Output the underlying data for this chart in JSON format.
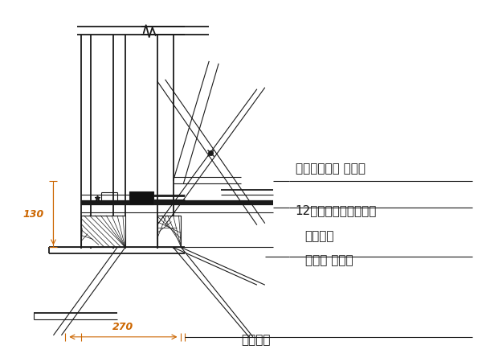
{
  "bg_color": "#ffffff",
  "lc": "#1a1a1a",
  "dim_color": "#cc6600",
  "labels": {
    "outer_rod": "外连杆（周转 使用）",
    "channel_steel": "12号槽钢（周转使用）",
    "connector_nut1": "连接螺母",
    "connector_nut2": "（周转 使用）",
    "anchor_bolt": "地脚螺栓",
    "dim_130": "130",
    "dim_270": "270"
  },
  "figsize": [
    6.0,
    4.5
  ],
  "dpi": 100
}
